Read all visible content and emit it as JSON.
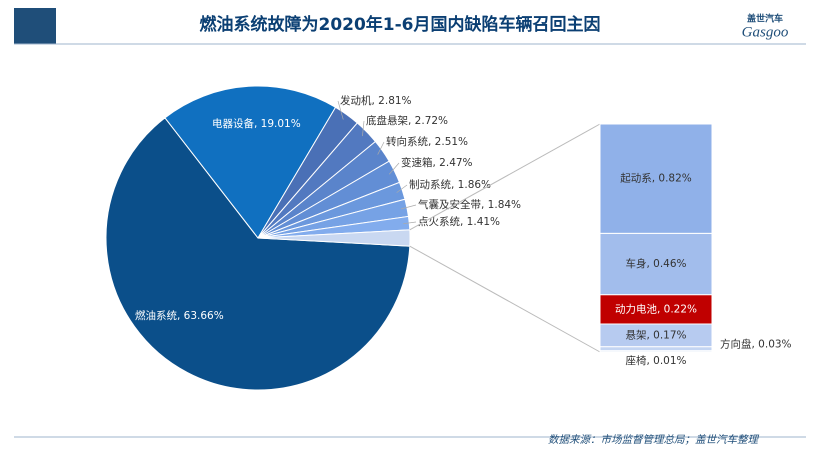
{
  "title": "燃油系统故障为2020年1-6月国内缺陷车辆召回主因",
  "logo": {
    "cn": "盖世汽车",
    "en": "Gasgoo"
  },
  "source": "数据来源：市场监督管理总局；盖世汽车整理",
  "chart_data": {
    "type": "pie-of-bar",
    "pie": {
      "value_labels": [
        "燃油系统, 63.66%",
        "电器设备, 19.01%",
        "发动机, 2.81%",
        "底盘悬架, 2.72%",
        "转向系统, 2.51%",
        "变速箱, 2.47%",
        "制动系统, 1.86%",
        "气囊及安全带, 1.84%",
        "点火系统, 1.41%"
      ],
      "values": [
        63.66,
        19.01,
        2.81,
        2.72,
        2.51,
        2.47,
        1.86,
        1.84,
        1.41
      ],
      "colors": [
        "#0b4f8a",
        "#1070c0",
        "#4a70b6",
        "#5279c0",
        "#5a84cb",
        "#628ed5",
        "#6b98dd",
        "#76a2e5",
        "#82aced"
      ],
      "other_color": "#c9d8f1"
    },
    "bar": {
      "value_labels": [
        "起动系, 0.82%",
        "车身, 0.46%",
        "动力电池, 0.22%",
        "悬架, 0.17%",
        "方向盘, 0.03%",
        "座椅, 0.01%"
      ],
      "values": [
        0.82,
        0.46,
        0.22,
        0.17,
        0.03,
        0.01
      ],
      "colors": [
        "#90b1e9",
        "#a2bdec",
        "#c00000",
        "#b7cbf0",
        "#c4d5f2",
        "#d2def5"
      ]
    }
  }
}
